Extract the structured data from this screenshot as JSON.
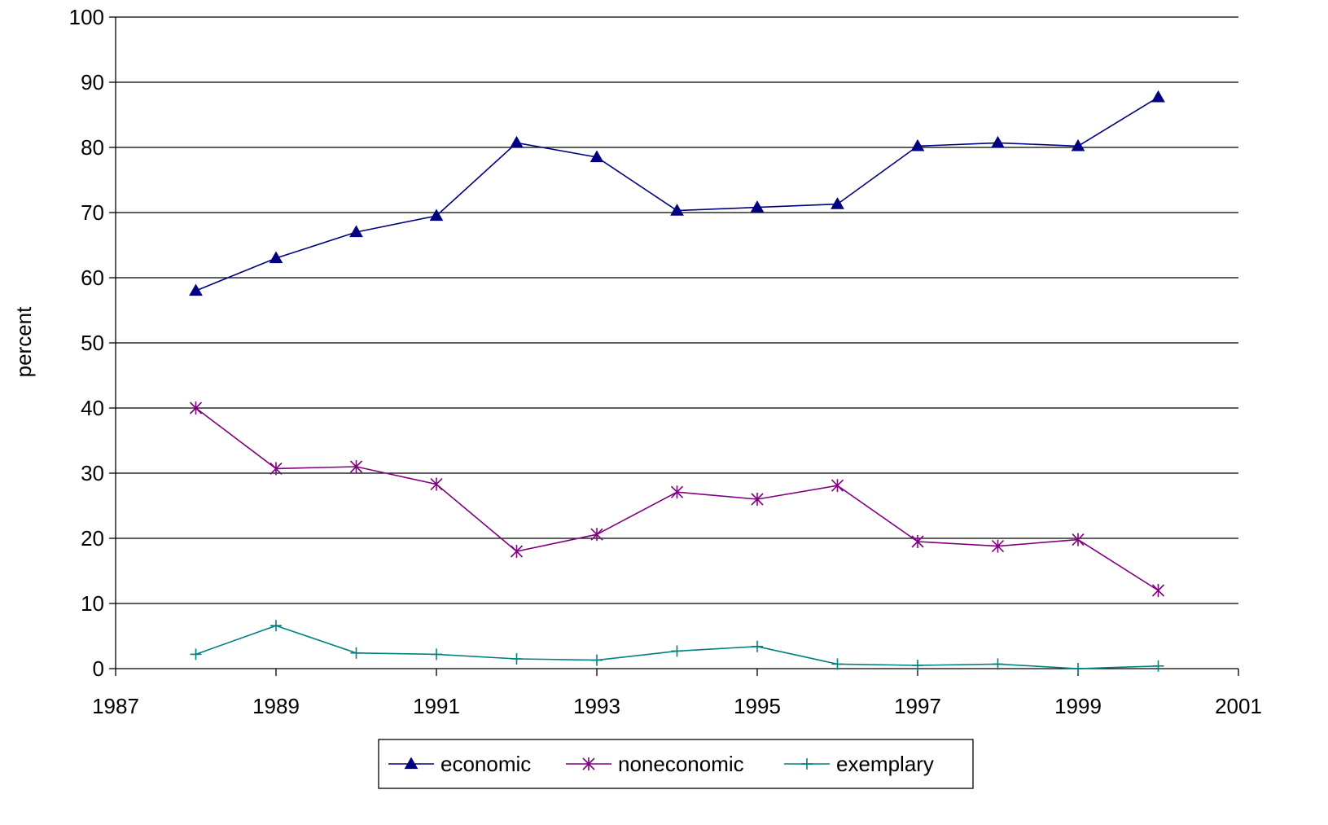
{
  "chart_data": {
    "type": "line",
    "title": "",
    "xlabel": "",
    "ylabel": "percent",
    "xlim": [
      1987,
      2001
    ],
    "ylim": [
      0,
      100
    ],
    "x_ticks": [
      1987,
      1989,
      1991,
      1993,
      1995,
      1997,
      1999,
      2001
    ],
    "y_ticks": [
      0,
      10,
      20,
      30,
      40,
      50,
      60,
      70,
      80,
      90,
      100
    ],
    "grid": "horizontal",
    "legend_position": "bottom",
    "x": [
      1988,
      1989,
      1990,
      1991,
      1992,
      1993,
      1994,
      1995,
      1996,
      1997,
      1998,
      1999,
      2000
    ],
    "series": [
      {
        "name": "economic",
        "color": "#000080",
        "marker": "triangle",
        "values": [
          58,
          63,
          67,
          69.5,
          80.7,
          78.5,
          70.3,
          70.8,
          71.3,
          80.2,
          80.7,
          80.2,
          87.7
        ]
      },
      {
        "name": "noneconomic",
        "color": "#800080",
        "marker": "asterisk",
        "values": [
          40,
          30.7,
          31,
          28.3,
          18,
          20.6,
          27.1,
          26,
          28.1,
          19.5,
          18.8,
          19.8,
          12
        ]
      },
      {
        "name": "exemplary",
        "color": "#008080",
        "marker": "plus",
        "values": [
          2.2,
          6.6,
          2.4,
          2.2,
          1.5,
          1.3,
          2.7,
          3.4,
          0.7,
          0.5,
          0.7,
          0,
          0.4
        ]
      }
    ]
  }
}
